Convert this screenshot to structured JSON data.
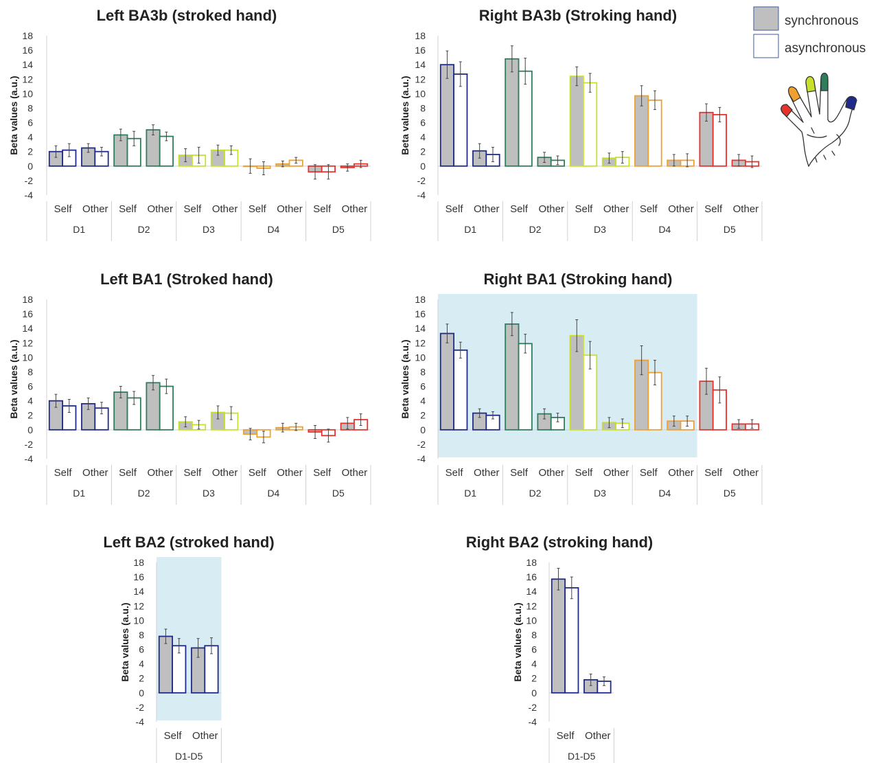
{
  "ylabel": "Beta values (a.u.)",
  "legend": {
    "items": [
      {
        "name": "synchronous",
        "fill": "#bfbfbf",
        "stroke": "#3b5aa0"
      },
      {
        "name": "asynchronous",
        "fill": "#ffffff",
        "stroke": "#3b5aa0"
      }
    ]
  },
  "hand_icon": "hand-with-colored-fingertips-icon",
  "colors": {
    "D1": "#1f2a8a",
    "D2": "#2e7d5b",
    "D3": "#c8e02a",
    "D4": "#f0a030",
    "D5": "#e8322c",
    "highlight": "#d8ecf4"
  },
  "chart_data": [
    {
      "id": "left-ba3b",
      "type": "bar",
      "title": "Left BA3b (stroked hand)",
      "ylim": [
        -4,
        18
      ],
      "yticks": [
        18,
        16,
        14,
        12,
        10,
        8,
        6,
        4,
        2,
        0,
        -2,
        -4
      ],
      "highlight": false,
      "groups": [
        {
          "label": "D1",
          "color": "#1f2a8a",
          "cats": [
            {
              "label": "Self",
              "sync": [
                2.0,
                0.8
              ],
              "async": [
                2.2,
                0.9
              ]
            },
            {
              "label": "Other",
              "sync": [
                2.5,
                0.6
              ],
              "async": [
                2.0,
                0.6
              ]
            }
          ]
        },
        {
          "label": "D2",
          "color": "#2e7d5b",
          "cats": [
            {
              "label": "Self",
              "sync": [
                4.3,
                0.8
              ],
              "async": [
                3.8,
                1.0
              ]
            },
            {
              "label": "Other",
              "sync": [
                5.0,
                0.7
              ],
              "async": [
                4.1,
                0.6
              ]
            }
          ]
        },
        {
          "label": "D3",
          "color": "#c8e02a",
          "cats": [
            {
              "label": "Self",
              "sync": [
                1.5,
                0.9
              ],
              "async": [
                1.5,
                1.1
              ]
            },
            {
              "label": "Other",
              "sync": [
                2.2,
                0.7
              ],
              "async": [
                2.2,
                0.6
              ]
            }
          ]
        },
        {
          "label": "D4",
          "color": "#f0a030",
          "cats": [
            {
              "label": "Self",
              "sync": [
                0.0,
                1.0
              ],
              "async": [
                -0.3,
                0.9
              ]
            },
            {
              "label": "Other",
              "sync": [
                0.3,
                0.4
              ],
              "async": [
                0.8,
                0.4
              ]
            }
          ]
        },
        {
          "label": "D5",
          "color": "#e8322c",
          "cats": [
            {
              "label": "Self",
              "sync": [
                -0.8,
                1.0
              ],
              "async": [
                -0.8,
                1.0
              ]
            },
            {
              "label": "Other",
              "sync": [
                -0.2,
                0.5
              ],
              "async": [
                0.3,
                0.5
              ]
            }
          ]
        }
      ]
    },
    {
      "id": "right-ba3b",
      "type": "bar",
      "title": "Right BA3b (Stroking hand)",
      "ylim": [
        -4,
        18
      ],
      "yticks": [
        18,
        16,
        14,
        12,
        10,
        8,
        6,
        4,
        2,
        0,
        -2,
        -4
      ],
      "highlight": false,
      "groups": [
        {
          "label": "D1",
          "color": "#1f2a8a",
          "cats": [
            {
              "label": "Self",
              "sync": [
                14.0,
                1.9
              ],
              "async": [
                12.7,
                1.7
              ]
            },
            {
              "label": "Other",
              "sync": [
                2.1,
                1.0
              ],
              "async": [
                1.6,
                1.0
              ]
            }
          ]
        },
        {
          "label": "D2",
          "color": "#2e7d5b",
          "cats": [
            {
              "label": "Self",
              "sync": [
                14.8,
                1.8
              ],
              "async": [
                13.1,
                1.8
              ]
            },
            {
              "label": "Other",
              "sync": [
                1.2,
                0.7
              ],
              "async": [
                0.8,
                0.6
              ]
            }
          ]
        },
        {
          "label": "D3",
          "color": "#c8e02a",
          "cats": [
            {
              "label": "Self",
              "sync": [
                12.4,
                1.3
              ],
              "async": [
                11.5,
                1.3
              ]
            },
            {
              "label": "Other",
              "sync": [
                1.1,
                0.7
              ],
              "async": [
                1.2,
                0.8
              ]
            }
          ]
        },
        {
          "label": "D4",
          "color": "#f0a030",
          "cats": [
            {
              "label": "Self",
              "sync": [
                9.7,
                1.4
              ],
              "async": [
                9.1,
                1.3
              ]
            },
            {
              "label": "Other",
              "sync": [
                0.8,
                0.8
              ],
              "async": [
                0.8,
                0.9
              ]
            }
          ]
        },
        {
          "label": "D5",
          "color": "#e8322c",
          "cats": [
            {
              "label": "Self",
              "sync": [
                7.4,
                1.2
              ],
              "async": [
                7.1,
                1.0
              ]
            },
            {
              "label": "Other",
              "sync": [
                0.8,
                0.8
              ],
              "async": [
                0.6,
                0.8
              ]
            }
          ]
        }
      ]
    },
    {
      "id": "left-ba1",
      "type": "bar",
      "title": "Left BA1 (Stroked hand)",
      "ylim": [
        -4,
        18
      ],
      "yticks": [
        18,
        16,
        14,
        12,
        10,
        8,
        6,
        4,
        2,
        0,
        -2,
        -4
      ],
      "highlight": false,
      "groups": [
        {
          "label": "D1",
          "color": "#1f2a8a",
          "cats": [
            {
              "label": "Self",
              "sync": [
                4.0,
                0.9
              ],
              "async": [
                3.3,
                0.9
              ]
            },
            {
              "label": "Other",
              "sync": [
                3.6,
                0.8
              ],
              "async": [
                3.0,
                0.8
              ]
            }
          ]
        },
        {
          "label": "D2",
          "color": "#2e7d5b",
          "cats": [
            {
              "label": "Self",
              "sync": [
                5.2,
                0.8
              ],
              "async": [
                4.4,
                0.9
              ]
            },
            {
              "label": "Other",
              "sync": [
                6.5,
                1.0
              ],
              "async": [
                6.0,
                1.0
              ]
            }
          ]
        },
        {
          "label": "D3",
          "color": "#c8e02a",
          "cats": [
            {
              "label": "Self",
              "sync": [
                1.1,
                0.7
              ],
              "async": [
                0.7,
                0.6
              ]
            },
            {
              "label": "Other",
              "sync": [
                2.4,
                0.9
              ],
              "async": [
                2.3,
                0.9
              ]
            }
          ]
        },
        {
          "label": "D4",
          "color": "#f0a030",
          "cats": [
            {
              "label": "Self",
              "sync": [
                -0.6,
                0.8
              ],
              "async": [
                -1.0,
                0.8
              ]
            },
            {
              "label": "Other",
              "sync": [
                0.3,
                0.6
              ],
              "async": [
                0.4,
                0.5
              ]
            }
          ]
        },
        {
          "label": "D5",
          "color": "#e8322c",
          "cats": [
            {
              "label": "Self",
              "sync": [
                -0.3,
                0.9
              ],
              "async": [
                -0.8,
                0.9
              ]
            },
            {
              "label": "Other",
              "sync": [
                0.9,
                0.8
              ],
              "async": [
                1.4,
                0.8
              ]
            }
          ]
        }
      ]
    },
    {
      "id": "right-ba1",
      "type": "bar",
      "title": "Right BA1 (Stroking hand)",
      "ylim": [
        -4,
        18
      ],
      "yticks": [
        18,
        16,
        14,
        12,
        10,
        8,
        6,
        4,
        2,
        0,
        -2,
        -4
      ],
      "highlight": true,
      "highlight_groups": 4,
      "groups": [
        {
          "label": "D1",
          "color": "#1f2a8a",
          "cats": [
            {
              "label": "Self",
              "sync": [
                13.3,
                1.3
              ],
              "async": [
                11.0,
                1.1
              ]
            },
            {
              "label": "Other",
              "sync": [
                2.3,
                0.6
              ],
              "async": [
                2.0,
                0.5
              ]
            }
          ]
        },
        {
          "label": "D2",
          "color": "#2e7d5b",
          "cats": [
            {
              "label": "Self",
              "sync": [
                14.6,
                1.6
              ],
              "async": [
                11.9,
                1.3
              ]
            },
            {
              "label": "Other",
              "sync": [
                2.2,
                0.7
              ],
              "async": [
                1.7,
                0.6
              ]
            }
          ]
        },
        {
          "label": "D3",
          "color": "#c8e02a",
          "cats": [
            {
              "label": "Self",
              "sync": [
                13.0,
                2.2
              ],
              "async": [
                10.3,
                1.9
              ]
            },
            {
              "label": "Other",
              "sync": [
                1.0,
                0.7
              ],
              "async": [
                0.9,
                0.6
              ]
            }
          ]
        },
        {
          "label": "D4",
          "color": "#f0a030",
          "cats": [
            {
              "label": "Self",
              "sync": [
                9.6,
                2.0
              ],
              "async": [
                7.9,
                1.7
              ]
            },
            {
              "label": "Other",
              "sync": [
                1.2,
                0.7
              ],
              "async": [
                1.2,
                0.7
              ]
            }
          ]
        },
        {
          "label": "D5",
          "color": "#e8322c",
          "cats": [
            {
              "label": "Self",
              "sync": [
                6.7,
                1.8
              ],
              "async": [
                5.5,
                1.8
              ]
            },
            {
              "label": "Other",
              "sync": [
                0.8,
                0.6
              ],
              "async": [
                0.8,
                0.6
              ]
            }
          ]
        }
      ]
    },
    {
      "id": "left-ba2",
      "type": "bar",
      "title": "Left BA2  (stroked hand)",
      "ylim": [
        -4,
        18
      ],
      "yticks": [
        18,
        16,
        14,
        12,
        10,
        8,
        6,
        4,
        2,
        0,
        -2,
        -4
      ],
      "highlight": true,
      "highlight_groups": 1,
      "groups": [
        {
          "label": "D1-D5",
          "color": "#1f2a8a",
          "cats": [
            {
              "label": "Self",
              "sync": [
                7.8,
                1.0
              ],
              "async": [
                6.5,
                1.0
              ]
            },
            {
              "label": "Other",
              "sync": [
                6.2,
                1.3
              ],
              "async": [
                6.5,
                1.1
              ]
            }
          ]
        }
      ]
    },
    {
      "id": "right-ba2",
      "type": "bar",
      "title": "Right BA2  (stroking hand)",
      "ylim": [
        -4,
        18
      ],
      "yticks": [
        18,
        16,
        14,
        12,
        10,
        8,
        6,
        4,
        2,
        0,
        -2,
        -4
      ],
      "highlight": false,
      "groups": [
        {
          "label": "D1-D5",
          "color": "#1f2a8a",
          "cats": [
            {
              "label": "Self",
              "sync": [
                15.7,
                1.5
              ],
              "async": [
                14.5,
                1.5
              ]
            },
            {
              "label": "Other",
              "sync": [
                1.8,
                0.8
              ],
              "async": [
                1.6,
                0.6
              ]
            }
          ]
        }
      ]
    }
  ]
}
